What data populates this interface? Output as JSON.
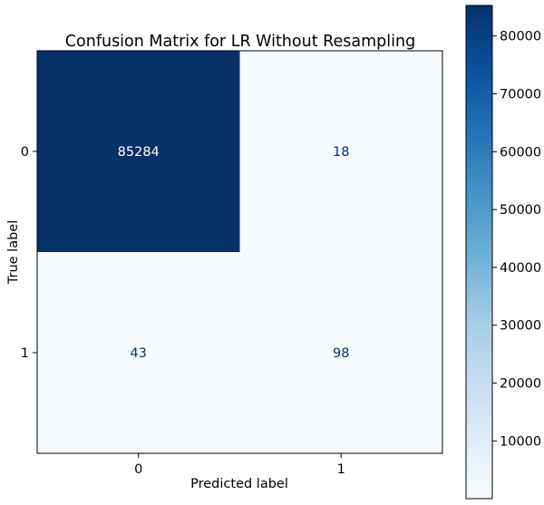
{
  "chart_data": {
    "type": "heatmap",
    "title": "Confusion Matrix for LR Without Resampling",
    "xlabel": "Predicted label",
    "ylabel": "True label",
    "x_categories": [
      "0",
      "1"
    ],
    "y_categories": [
      "0",
      "1"
    ],
    "matrix": [
      [
        85284,
        18
      ],
      [
        43,
        98
      ]
    ],
    "colormap": "Blues",
    "cell_label_light": "#ffffff",
    "cell_label_dark": "#08306b",
    "colorbar": {
      "min": 18,
      "max": 85284,
      "ticks": [
        10000,
        20000,
        30000,
        40000,
        50000,
        60000,
        70000,
        80000
      ],
      "tick_labels": [
        "10000",
        "20000",
        "30000",
        "40000",
        "50000",
        "60000",
        "70000",
        "80000"
      ]
    }
  }
}
